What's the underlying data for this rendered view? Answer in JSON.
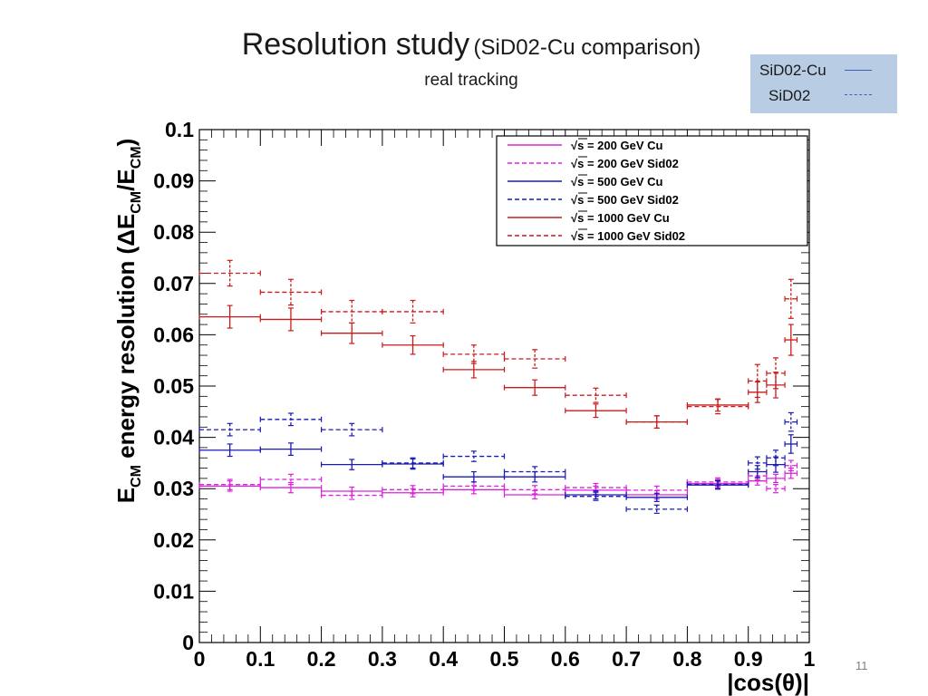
{
  "slide": {
    "title_main": "Resolution study",
    "title_paren": "(SiD02-Cu comparison)",
    "subtitle": "real tracking",
    "page_number": "11",
    "key_box": {
      "cu_label": "SiD02-Cu",
      "sid_label": "SiD02"
    }
  },
  "chart_data": {
    "type": "scatter",
    "title": "",
    "xlabel": "|cos(θ)|",
    "ylabel_parts": [
      "E",
      "CM",
      " energy resolution (ΔE",
      "CM",
      "/E",
      "CM",
      ")"
    ],
    "xlim": [
      0,
      1
    ],
    "ylim": [
      0,
      0.1
    ],
    "x_ticks": [
      0,
      0.1,
      0.2,
      0.3,
      0.4,
      0.5,
      0.6,
      0.7,
      0.8,
      0.9,
      1
    ],
    "x_tick_labels": [
      "0",
      "0.1",
      "0.2",
      "0.3",
      "0.4",
      "0.5",
      "0.6",
      "0.7",
      "0.8",
      "0.9",
      "1"
    ],
    "y_ticks": [
      0,
      0.01,
      0.02,
      0.03,
      0.04,
      0.05,
      0.06,
      0.07,
      0.08,
      0.09,
      0.1
    ],
    "y_tick_labels": [
      "0",
      "0.01",
      "0.02",
      "0.03",
      "0.04",
      "0.05",
      "0.06",
      "0.07",
      "0.08",
      "0.09",
      "0.1"
    ],
    "legend_position": "top-right",
    "series": [
      {
        "name": "√s = 200 GeV Cu",
        "legend_prefix": "√",
        "legend_rest": "s = 200 GeV Cu",
        "color": "#dd22dd",
        "dashed": false,
        "points": [
          {
            "x": 0.05,
            "xlo": 0.0,
            "xhi": 0.1,
            "y": 0.0305,
            "err": 0.001
          },
          {
            "x": 0.15,
            "xlo": 0.1,
            "xhi": 0.2,
            "y": 0.0302,
            "err": 0.001
          },
          {
            "x": 0.25,
            "xlo": 0.2,
            "xhi": 0.3,
            "y": 0.0295,
            "err": 0.0008
          },
          {
            "x": 0.35,
            "xlo": 0.3,
            "xhi": 0.4,
            "y": 0.0292,
            "err": 0.0008
          },
          {
            "x": 0.45,
            "xlo": 0.4,
            "xhi": 0.5,
            "y": 0.0298,
            "err": 0.0008
          },
          {
            "x": 0.55,
            "xlo": 0.5,
            "xhi": 0.6,
            "y": 0.0288,
            "err": 0.0008
          },
          {
            "x": 0.65,
            "xlo": 0.6,
            "xhi": 0.7,
            "y": 0.0297,
            "err": 0.0008
          },
          {
            "x": 0.75,
            "xlo": 0.7,
            "xhi": 0.8,
            "y": 0.0288,
            "err": 0.0008
          },
          {
            "x": 0.85,
            "xlo": 0.8,
            "xhi": 0.9,
            "y": 0.031,
            "err": 0.0008
          },
          {
            "x": 0.915,
            "xlo": 0.9,
            "xhi": 0.93,
            "y": 0.0315,
            "err": 0.0008
          },
          {
            "x": 0.945,
            "xlo": 0.93,
            "xhi": 0.96,
            "y": 0.032,
            "err": 0.0008
          },
          {
            "x": 0.97,
            "xlo": 0.96,
            "xhi": 0.98,
            "y": 0.033,
            "err": 0.001
          }
        ]
      },
      {
        "name": "√s = 200 GeV Sid02",
        "legend_prefix": "√",
        "legend_rest": "s = 200 GeV Sid02",
        "color": "#dd22dd",
        "dashed": true,
        "points": [
          {
            "x": 0.05,
            "xlo": 0.0,
            "xhi": 0.1,
            "y": 0.0308,
            "err": 0.001
          },
          {
            "x": 0.15,
            "xlo": 0.1,
            "xhi": 0.2,
            "y": 0.0318,
            "err": 0.001
          },
          {
            "x": 0.25,
            "xlo": 0.2,
            "xhi": 0.3,
            "y": 0.0287,
            "err": 0.0008
          },
          {
            "x": 0.35,
            "xlo": 0.3,
            "xhi": 0.4,
            "y": 0.0298,
            "err": 0.0008
          },
          {
            "x": 0.45,
            "xlo": 0.4,
            "xhi": 0.5,
            "y": 0.0305,
            "err": 0.0008
          },
          {
            "x": 0.55,
            "xlo": 0.5,
            "xhi": 0.6,
            "y": 0.0298,
            "err": 0.0008
          },
          {
            "x": 0.65,
            "xlo": 0.6,
            "xhi": 0.7,
            "y": 0.0302,
            "err": 0.0008
          },
          {
            "x": 0.75,
            "xlo": 0.7,
            "xhi": 0.8,
            "y": 0.0297,
            "err": 0.0008
          },
          {
            "x": 0.85,
            "xlo": 0.8,
            "xhi": 0.9,
            "y": 0.0313,
            "err": 0.0008
          },
          {
            "x": 0.915,
            "xlo": 0.9,
            "xhi": 0.93,
            "y": 0.0325,
            "err": 0.0008
          },
          {
            "x": 0.945,
            "xlo": 0.93,
            "xhi": 0.96,
            "y": 0.03,
            "err": 0.0008
          },
          {
            "x": 0.97,
            "xlo": 0.96,
            "xhi": 0.98,
            "y": 0.0345,
            "err": 0.001
          }
        ]
      },
      {
        "name": "√s = 500 GeV Cu",
        "legend_prefix": "√",
        "legend_rest": "s = 500 GeV Cu",
        "color": "#1a1ab8",
        "dashed": false,
        "points": [
          {
            "x": 0.05,
            "xlo": 0.0,
            "xhi": 0.1,
            "y": 0.0375,
            "err": 0.0012
          },
          {
            "x": 0.15,
            "xlo": 0.1,
            "xhi": 0.2,
            "y": 0.0377,
            "err": 0.0012
          },
          {
            "x": 0.25,
            "xlo": 0.2,
            "xhi": 0.3,
            "y": 0.0347,
            "err": 0.001
          },
          {
            "x": 0.35,
            "xlo": 0.3,
            "xhi": 0.4,
            "y": 0.0348,
            "err": 0.001
          },
          {
            "x": 0.45,
            "xlo": 0.4,
            "xhi": 0.5,
            "y": 0.0323,
            "err": 0.001
          },
          {
            "x": 0.55,
            "xlo": 0.5,
            "xhi": 0.6,
            "y": 0.0323,
            "err": 0.001
          },
          {
            "x": 0.65,
            "xlo": 0.6,
            "xhi": 0.7,
            "y": 0.0288,
            "err": 0.0008
          },
          {
            "x": 0.75,
            "xlo": 0.7,
            "xhi": 0.8,
            "y": 0.0283,
            "err": 0.0008
          },
          {
            "x": 0.85,
            "xlo": 0.8,
            "xhi": 0.9,
            "y": 0.0307,
            "err": 0.0008
          },
          {
            "x": 0.915,
            "xlo": 0.9,
            "xhi": 0.93,
            "y": 0.0333,
            "err": 0.0012
          },
          {
            "x": 0.945,
            "xlo": 0.93,
            "xhi": 0.96,
            "y": 0.0347,
            "err": 0.0015
          },
          {
            "x": 0.97,
            "xlo": 0.96,
            "xhi": 0.98,
            "y": 0.0387,
            "err": 0.0018
          }
        ]
      },
      {
        "name": "√s = 500 GeV Sid02",
        "legend_prefix": "√",
        "legend_rest": "s = 500 GeV Sid02",
        "color": "#1a1ab8",
        "dashed": true,
        "points": [
          {
            "x": 0.05,
            "xlo": 0.0,
            "xhi": 0.1,
            "y": 0.0415,
            "err": 0.0012
          },
          {
            "x": 0.15,
            "xlo": 0.1,
            "xhi": 0.2,
            "y": 0.0435,
            "err": 0.0012
          },
          {
            "x": 0.25,
            "xlo": 0.2,
            "xhi": 0.3,
            "y": 0.0415,
            "err": 0.0012
          },
          {
            "x": 0.35,
            "xlo": 0.3,
            "xhi": 0.4,
            "y": 0.035,
            "err": 0.001
          },
          {
            "x": 0.45,
            "xlo": 0.4,
            "xhi": 0.5,
            "y": 0.0363,
            "err": 0.001
          },
          {
            "x": 0.55,
            "xlo": 0.5,
            "xhi": 0.6,
            "y": 0.0333,
            "err": 0.001
          },
          {
            "x": 0.65,
            "xlo": 0.6,
            "xhi": 0.7,
            "y": 0.0285,
            "err": 0.0008
          },
          {
            "x": 0.75,
            "xlo": 0.7,
            "xhi": 0.8,
            "y": 0.026,
            "err": 0.0008
          },
          {
            "x": 0.85,
            "xlo": 0.8,
            "xhi": 0.9,
            "y": 0.0308,
            "err": 0.0008
          },
          {
            "x": 0.915,
            "xlo": 0.9,
            "xhi": 0.93,
            "y": 0.035,
            "err": 0.0012
          },
          {
            "x": 0.945,
            "xlo": 0.93,
            "xhi": 0.96,
            "y": 0.036,
            "err": 0.0015
          },
          {
            "x": 0.97,
            "xlo": 0.96,
            "xhi": 0.98,
            "y": 0.043,
            "err": 0.0018
          }
        ]
      },
      {
        "name": "√s = 1000 GeV Cu",
        "legend_prefix": "√",
        "legend_rest": "s = 1000 GeV Cu",
        "color": "#cc1a1a",
        "dashed": false,
        "points": [
          {
            "x": 0.05,
            "xlo": 0.0,
            "xhi": 0.1,
            "y": 0.0635,
            "err": 0.0022
          },
          {
            "x": 0.15,
            "xlo": 0.1,
            "xhi": 0.2,
            "y": 0.063,
            "err": 0.0022
          },
          {
            "x": 0.25,
            "xlo": 0.2,
            "xhi": 0.3,
            "y": 0.0603,
            "err": 0.002
          },
          {
            "x": 0.35,
            "xlo": 0.3,
            "xhi": 0.4,
            "y": 0.058,
            "err": 0.0018
          },
          {
            "x": 0.45,
            "xlo": 0.4,
            "xhi": 0.5,
            "y": 0.0532,
            "err": 0.0016
          },
          {
            "x": 0.55,
            "xlo": 0.5,
            "xhi": 0.6,
            "y": 0.0497,
            "err": 0.0015
          },
          {
            "x": 0.65,
            "xlo": 0.6,
            "xhi": 0.7,
            "y": 0.0452,
            "err": 0.0013
          },
          {
            "x": 0.75,
            "xlo": 0.7,
            "xhi": 0.8,
            "y": 0.043,
            "err": 0.0012
          },
          {
            "x": 0.85,
            "xlo": 0.8,
            "xhi": 0.9,
            "y": 0.0463,
            "err": 0.0012
          },
          {
            "x": 0.915,
            "xlo": 0.9,
            "xhi": 0.93,
            "y": 0.0488,
            "err": 0.002
          },
          {
            "x": 0.945,
            "xlo": 0.93,
            "xhi": 0.96,
            "y": 0.0502,
            "err": 0.0025
          },
          {
            "x": 0.97,
            "xlo": 0.96,
            "xhi": 0.98,
            "y": 0.059,
            "err": 0.003
          }
        ]
      },
      {
        "name": "√s = 1000 GeV Sid02",
        "legend_prefix": "√",
        "legend_rest": "s = 1000 GeV Sid02",
        "color": "#cc1a1a",
        "dashed": true,
        "points": [
          {
            "x": 0.05,
            "xlo": 0.0,
            "xhi": 0.1,
            "y": 0.072,
            "err": 0.0025
          },
          {
            "x": 0.15,
            "xlo": 0.1,
            "xhi": 0.2,
            "y": 0.0683,
            "err": 0.0025
          },
          {
            "x": 0.25,
            "xlo": 0.2,
            "xhi": 0.3,
            "y": 0.0645,
            "err": 0.0022
          },
          {
            "x": 0.35,
            "xlo": 0.3,
            "xhi": 0.4,
            "y": 0.0645,
            "err": 0.0022
          },
          {
            "x": 0.45,
            "xlo": 0.4,
            "xhi": 0.5,
            "y": 0.0562,
            "err": 0.0018
          },
          {
            "x": 0.55,
            "xlo": 0.5,
            "xhi": 0.6,
            "y": 0.0553,
            "err": 0.0018
          },
          {
            "x": 0.65,
            "xlo": 0.6,
            "xhi": 0.7,
            "y": 0.0482,
            "err": 0.0014
          },
          {
            "x": 0.75,
            "xlo": 0.7,
            "xhi": 0.8,
            "y": 0.043,
            "err": 0.0012
          },
          {
            "x": 0.85,
            "xlo": 0.8,
            "xhi": 0.9,
            "y": 0.046,
            "err": 0.0014
          },
          {
            "x": 0.915,
            "xlo": 0.9,
            "xhi": 0.93,
            "y": 0.051,
            "err": 0.0032
          },
          {
            "x": 0.945,
            "xlo": 0.93,
            "xhi": 0.96,
            "y": 0.0525,
            "err": 0.003
          },
          {
            "x": 0.97,
            "xlo": 0.96,
            "xhi": 0.98,
            "y": 0.067,
            "err": 0.0038
          }
        ]
      }
    ]
  }
}
